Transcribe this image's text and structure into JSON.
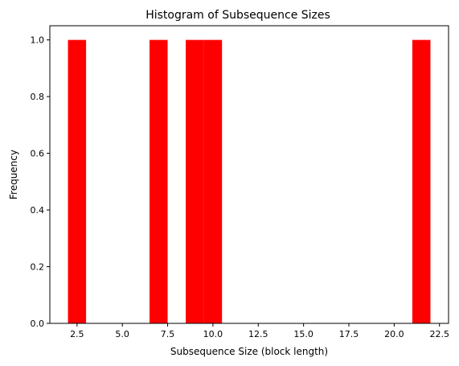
{
  "chart_data": {
    "type": "bar",
    "title": "Histogram of Subsequence Sizes",
    "xlabel": "Subsequence Size (block length)",
    "ylabel": "Frequency",
    "xlim": [
      1.0,
      23.0
    ],
    "ylim": [
      0,
      1.05
    ],
    "xticks": [
      2.5,
      5.0,
      7.5,
      10.0,
      12.5,
      15.0,
      17.5,
      20.0,
      22.5
    ],
    "xtick_labels": [
      "2.5",
      "5.0",
      "7.5",
      "10.0",
      "12.5",
      "15.0",
      "17.5",
      "20.0",
      "22.5"
    ],
    "yticks": [
      0.0,
      0.2,
      0.4,
      0.6,
      0.8,
      1.0
    ],
    "ytick_labels": [
      "0.0",
      "0.2",
      "0.4",
      "0.6",
      "0.8",
      "1.0"
    ],
    "bar_color": "#ff0000",
    "bars": [
      {
        "x0": 2.0,
        "x1": 3.0,
        "value": 1
      },
      {
        "x0": 6.5,
        "x1": 7.5,
        "value": 1
      },
      {
        "x0": 8.5,
        "x1": 9.5,
        "value": 1
      },
      {
        "x0": 9.5,
        "x1": 10.5,
        "value": 1
      },
      {
        "x0": 21.0,
        "x1": 22.0,
        "value": 1
      }
    ],
    "grid": false
  }
}
